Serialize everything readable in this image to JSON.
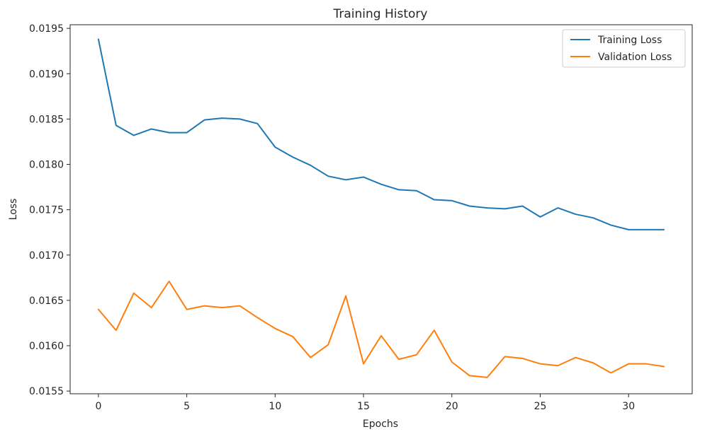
{
  "chart_data": {
    "type": "line",
    "title": "Training History",
    "xlabel": "Epochs",
    "ylabel": "Loss",
    "xlim": [
      -1.6,
      33.6
    ],
    "ylim": [
      0.01547,
      0.01954
    ],
    "xticks": [
      0,
      5,
      10,
      15,
      20,
      25,
      30
    ],
    "xtick_labels": [
      "0",
      "5",
      "10",
      "15",
      "20",
      "25",
      "30"
    ],
    "yticks": [
      0.0155,
      0.016,
      0.0165,
      0.017,
      0.0175,
      0.018,
      0.0185,
      0.019,
      0.0195
    ],
    "ytick_labels": [
      "0.0155",
      "0.0160",
      "0.0165",
      "0.0170",
      "0.0175",
      "0.0180",
      "0.0185",
      "0.0190",
      "0.0195"
    ],
    "grid": false,
    "legend_position": "top-right",
    "x": [
      0,
      1,
      2,
      3,
      4,
      5,
      6,
      7,
      8,
      9,
      10,
      11,
      12,
      13,
      14,
      15,
      16,
      17,
      18,
      19,
      20,
      21,
      22,
      23,
      24,
      25,
      26,
      27,
      28,
      29,
      30,
      31,
      32
    ],
    "series": [
      {
        "name": "Training Loss",
        "color": "#1f77b4",
        "values": [
          0.01938,
          0.01843,
          0.01832,
          0.01839,
          0.01835,
          0.01835,
          0.01849,
          0.01851,
          0.0185,
          0.01845,
          0.01819,
          0.01808,
          0.01799,
          0.01787,
          0.01783,
          0.01786,
          0.01778,
          0.01772,
          0.01771,
          0.01761,
          0.0176,
          0.01754,
          0.01752,
          0.01751,
          0.01754,
          0.01742,
          0.01752,
          0.01745,
          0.01741,
          0.01733,
          0.01728,
          0.01728,
          0.01728
        ]
      },
      {
        "name": "Validation Loss",
        "color": "#ff7f0e",
        "values": [
          0.0164,
          0.01617,
          0.01658,
          0.01642,
          0.01671,
          0.0164,
          0.01644,
          0.01642,
          0.01644,
          0.01631,
          0.01619,
          0.0161,
          0.01587,
          0.01601,
          0.01655,
          0.0158,
          0.01611,
          0.01585,
          0.0159,
          0.01617,
          0.01582,
          0.01567,
          0.01565,
          0.01588,
          0.01586,
          0.0158,
          0.01578,
          0.01587,
          0.01581,
          0.0157,
          0.0158,
          0.0158,
          0.01577
        ]
      }
    ]
  }
}
